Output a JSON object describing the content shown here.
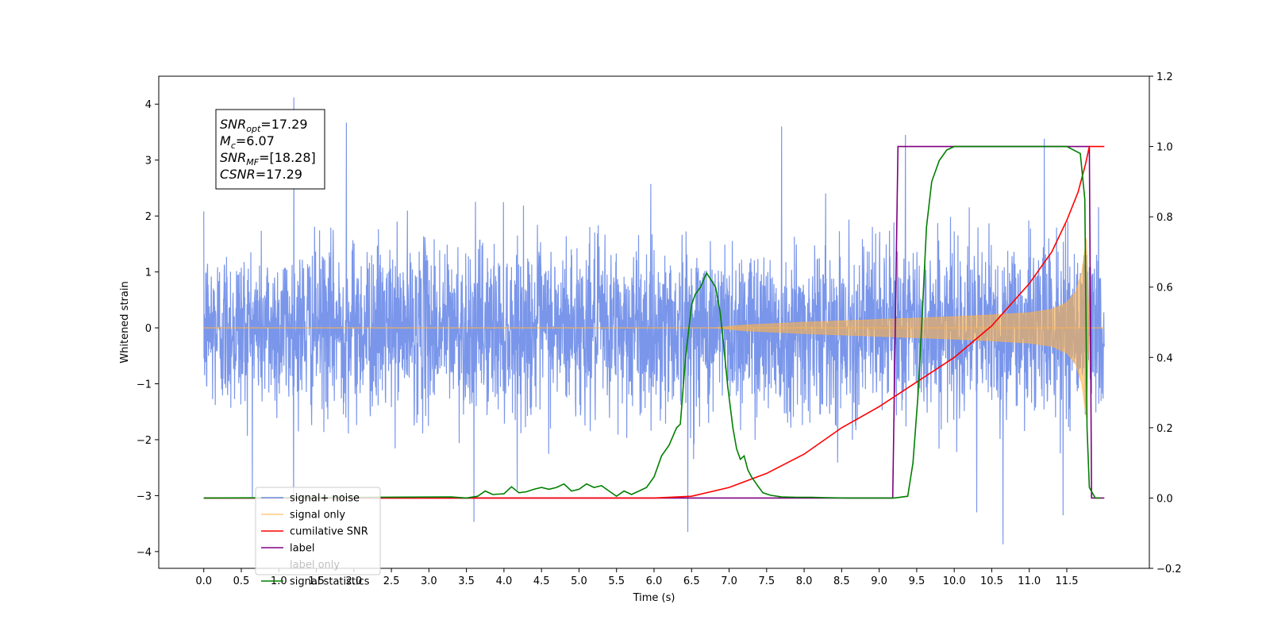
{
  "chart_data": {
    "type": "line",
    "xlabel": "Time (s)",
    "ylabel": "Whitened strain",
    "xlim": [
      -0.6,
      12.6
    ],
    "ylim_left": [
      -4.3,
      4.5
    ],
    "ylim_right": [
      -0.2,
      1.2
    ],
    "xticks": [
      "0.0",
      "0.5",
      "1.0",
      "1.5",
      "2.0",
      "2.5",
      "3.0",
      "3.5",
      "4.0",
      "4.5",
      "5.0",
      "5.5",
      "6.0",
      "6.5",
      "7.0",
      "7.5",
      "8.0",
      "8.5",
      "9.0",
      "9.5",
      "10.0",
      "10.5",
      "11.0",
      "11.5"
    ],
    "yticks_left": [
      "4",
      "3",
      "2",
      "1",
      "0",
      "−1",
      "−2",
      "−3",
      "−4"
    ],
    "yticks_right": [
      "1.2",
      "1.0",
      "0.8",
      "0.6",
      "0.4",
      "0.2",
      "0.0",
      "−0.2"
    ],
    "grid": false,
    "legend_position": "lower-left",
    "annotation": {
      "lines": [
        {
          "base": "SNR",
          "sub": "opt",
          "value": "=17.29"
        },
        {
          "base": "M",
          "sub": "c",
          "value": "=6.07"
        },
        {
          "base": "SNR",
          "sub": "MF",
          "value": "=[18.28]"
        },
        {
          "base": "CSNR",
          "sub": "",
          "value": "=17.29"
        }
      ]
    },
    "series": [
      {
        "name": "signal+ noise",
        "axis": "left",
        "color": "#4169e1",
        "kind": "noise",
        "sigma": 0.75,
        "duration": [
          0.0,
          12.0
        ],
        "peak_values": [
          [
            1.2,
            4.12
          ],
          [
            1.9,
            3.67
          ],
          [
            7.7,
            3.6
          ],
          [
            9.35,
            3.45
          ],
          [
            11.2,
            3.38
          ],
          [
            3.6,
            -3.47
          ],
          [
            6.45,
            -3.65
          ],
          [
            10.65,
            -3.87
          ],
          [
            11.45,
            -3.35
          ],
          [
            10.3,
            -3.3
          ]
        ]
      },
      {
        "name": "signal only",
        "axis": "left",
        "color": "#ffb347",
        "kind": "chirp_envelope",
        "x": [
          0.0,
          6.8,
          7.2,
          8.0,
          9.0,
          10.0,
          10.5,
          11.0,
          11.3,
          11.5,
          11.62,
          11.7,
          11.76,
          11.8,
          11.85,
          12.0
        ],
        "amplitude": [
          0.0,
          0.0,
          0.05,
          0.1,
          0.15,
          0.2,
          0.23,
          0.27,
          0.33,
          0.45,
          0.65,
          1.0,
          1.6,
          0.0,
          0.0,
          0.0
        ]
      },
      {
        "name": "cumilative SNR",
        "axis": "right",
        "color": "#ff0000",
        "x": [
          0.0,
          6.0,
          6.5,
          7.0,
          7.5,
          8.0,
          8.5,
          9.0,
          9.5,
          10.0,
          10.5,
          11.0,
          11.3,
          11.5,
          11.65,
          11.75,
          11.8,
          12.0
        ],
        "y": [
          0.0,
          0.0,
          0.005,
          0.03,
          0.07,
          0.125,
          0.2,
          0.26,
          0.33,
          0.4,
          0.49,
          0.61,
          0.7,
          0.79,
          0.87,
          0.95,
          1.0,
          1.0
        ]
      },
      {
        "name": "label",
        "axis": "right",
        "color": "#800080",
        "x": [
          0.0,
          9.18,
          9.25,
          11.8,
          11.83,
          12.0
        ],
        "y": [
          0.0,
          0.0,
          1.0,
          1.0,
          0.0,
          0.0
        ]
      },
      {
        "name": "label only",
        "axis": "right",
        "color": "#800080",
        "legend_faded": true,
        "x": [],
        "y": []
      },
      {
        "name": "signal statistics",
        "axis": "right",
        "color": "#008000",
        "x": [
          0.0,
          3.3,
          3.5,
          3.65,
          3.75,
          3.85,
          4.0,
          4.1,
          4.2,
          4.3,
          4.4,
          4.5,
          4.6,
          4.7,
          4.8,
          4.9,
          5.0,
          5.1,
          5.2,
          5.3,
          5.4,
          5.5,
          5.6,
          5.7,
          5.8,
          5.9,
          6.0,
          6.1,
          6.2,
          6.3,
          6.35,
          6.42,
          6.5,
          6.55,
          6.62,
          6.7,
          6.76,
          6.82,
          6.88,
          6.92,
          6.98,
          7.05,
          7.1,
          7.15,
          7.2,
          7.25,
          7.3,
          7.38,
          7.45,
          7.55,
          7.7,
          7.9,
          8.1,
          8.3,
          8.6,
          9.2,
          9.38,
          9.45,
          9.52,
          9.58,
          9.63,
          9.7,
          9.8,
          9.9,
          10.0,
          10.2,
          11.5,
          11.68,
          11.74,
          11.77,
          11.8,
          11.88,
          11.95
        ],
        "y": [
          0.0,
          0.003,
          0.0,
          0.005,
          0.02,
          0.01,
          0.012,
          0.032,
          0.015,
          0.018,
          0.025,
          0.03,
          0.025,
          0.03,
          0.04,
          0.02,
          0.025,
          0.04,
          0.03,
          0.035,
          0.02,
          0.005,
          0.02,
          0.01,
          0.02,
          0.03,
          0.06,
          0.12,
          0.15,
          0.2,
          0.21,
          0.4,
          0.55,
          0.58,
          0.6,
          0.64,
          0.62,
          0.6,
          0.53,
          0.45,
          0.32,
          0.2,
          0.14,
          0.11,
          0.12,
          0.08,
          0.06,
          0.035,
          0.015,
          0.008,
          0.003,
          0.002,
          0.002,
          0.001,
          0.0,
          0.0,
          0.005,
          0.1,
          0.3,
          0.55,
          0.77,
          0.9,
          0.96,
          0.99,
          1.0,
          1.0,
          1.0,
          0.98,
          0.85,
          0.2,
          0.03,
          0.0,
          0.0
        ]
      }
    ]
  }
}
